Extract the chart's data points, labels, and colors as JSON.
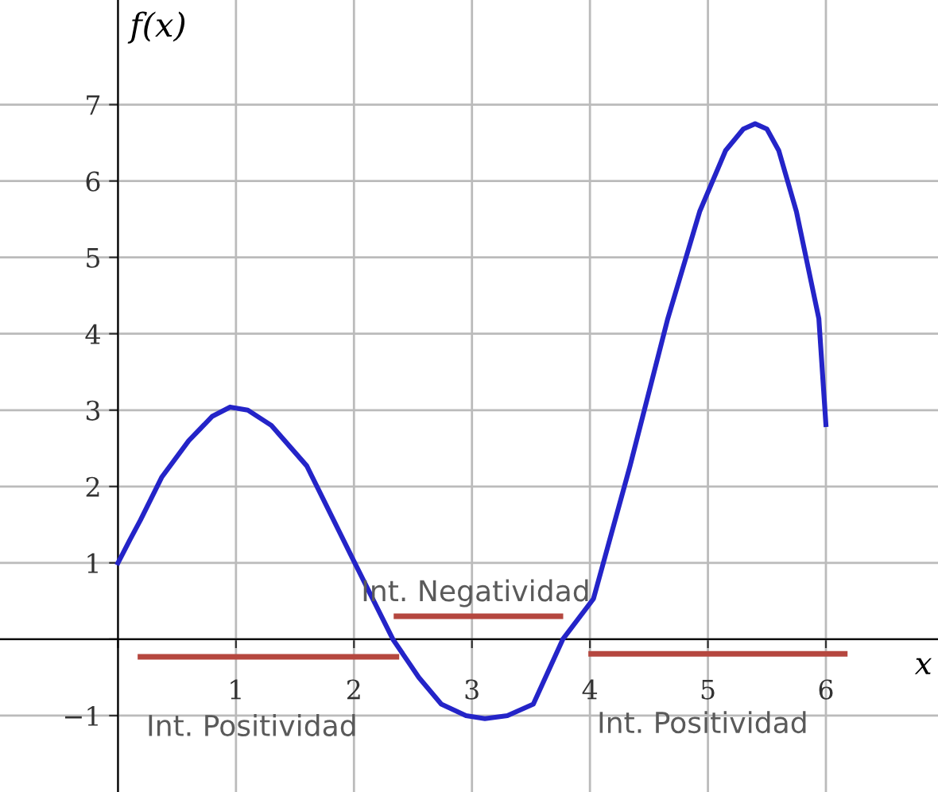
{
  "chart_data": {
    "type": "line",
    "xlabel": "x",
    "ylabel": "f(x)",
    "xlim": [
      -1.0,
      6.95
    ],
    "ylim": [
      -2.0,
      8.37
    ],
    "xticks": [
      {
        "value": 0,
        "label": null
      },
      1,
      2,
      3,
      4,
      5,
      6
    ],
    "yticks": [
      {
        "value": -1,
        "label": "−1"
      },
      {
        "value": 0,
        "label": null
      },
      1,
      2,
      3,
      4,
      5,
      6,
      7
    ],
    "grid": true,
    "marker": "none",
    "line_style": "solid",
    "series": [
      {
        "color": "#2424c8",
        "x": [
          0,
          0.1,
          0.19,
          0.37,
          0.6,
          0.8,
          0.95,
          1.1,
          1.3,
          1.6,
          2.0,
          2.33,
          2.55,
          2.74,
          2.95,
          3.11,
          3.3,
          3.52,
          3.77,
          4.03,
          4.34,
          4.66,
          4.93,
          5.15,
          5.3,
          5.4,
          5.5,
          5.6,
          5.75,
          5.94,
          6.0
        ],
        "values": [
          1,
          1.3,
          1.56,
          2.12,
          2.6,
          2.92,
          3.04,
          3.0,
          2.8,
          2.27,
          1.02,
          0,
          -0.5,
          -0.85,
          -1.0,
          -1.04,
          -1.0,
          -0.85,
          0,
          0.53,
          2.27,
          4.2,
          5.6,
          6.4,
          6.68,
          6.75,
          6.68,
          6.4,
          5.6,
          4.2,
          2.81
        ]
      },
      {
        "color": "#b5473f",
        "x": [
          0.19,
          2.36
        ],
        "values": [
          -0.23,
          -0.23
        ]
      },
      {
        "color": "#b5473f",
        "x": [
          2.36,
          3.75
        ],
        "values": [
          0.3,
          0.3
        ]
      },
      {
        "color": "#b5473f",
        "x": [
          4.01,
          6.16
        ],
        "values": [
          -0.19,
          -0.19
        ]
      }
    ],
    "annotations": [
      "Int. Positividad",
      "Int. Negatividad",
      "Int. Positividad"
    ]
  }
}
